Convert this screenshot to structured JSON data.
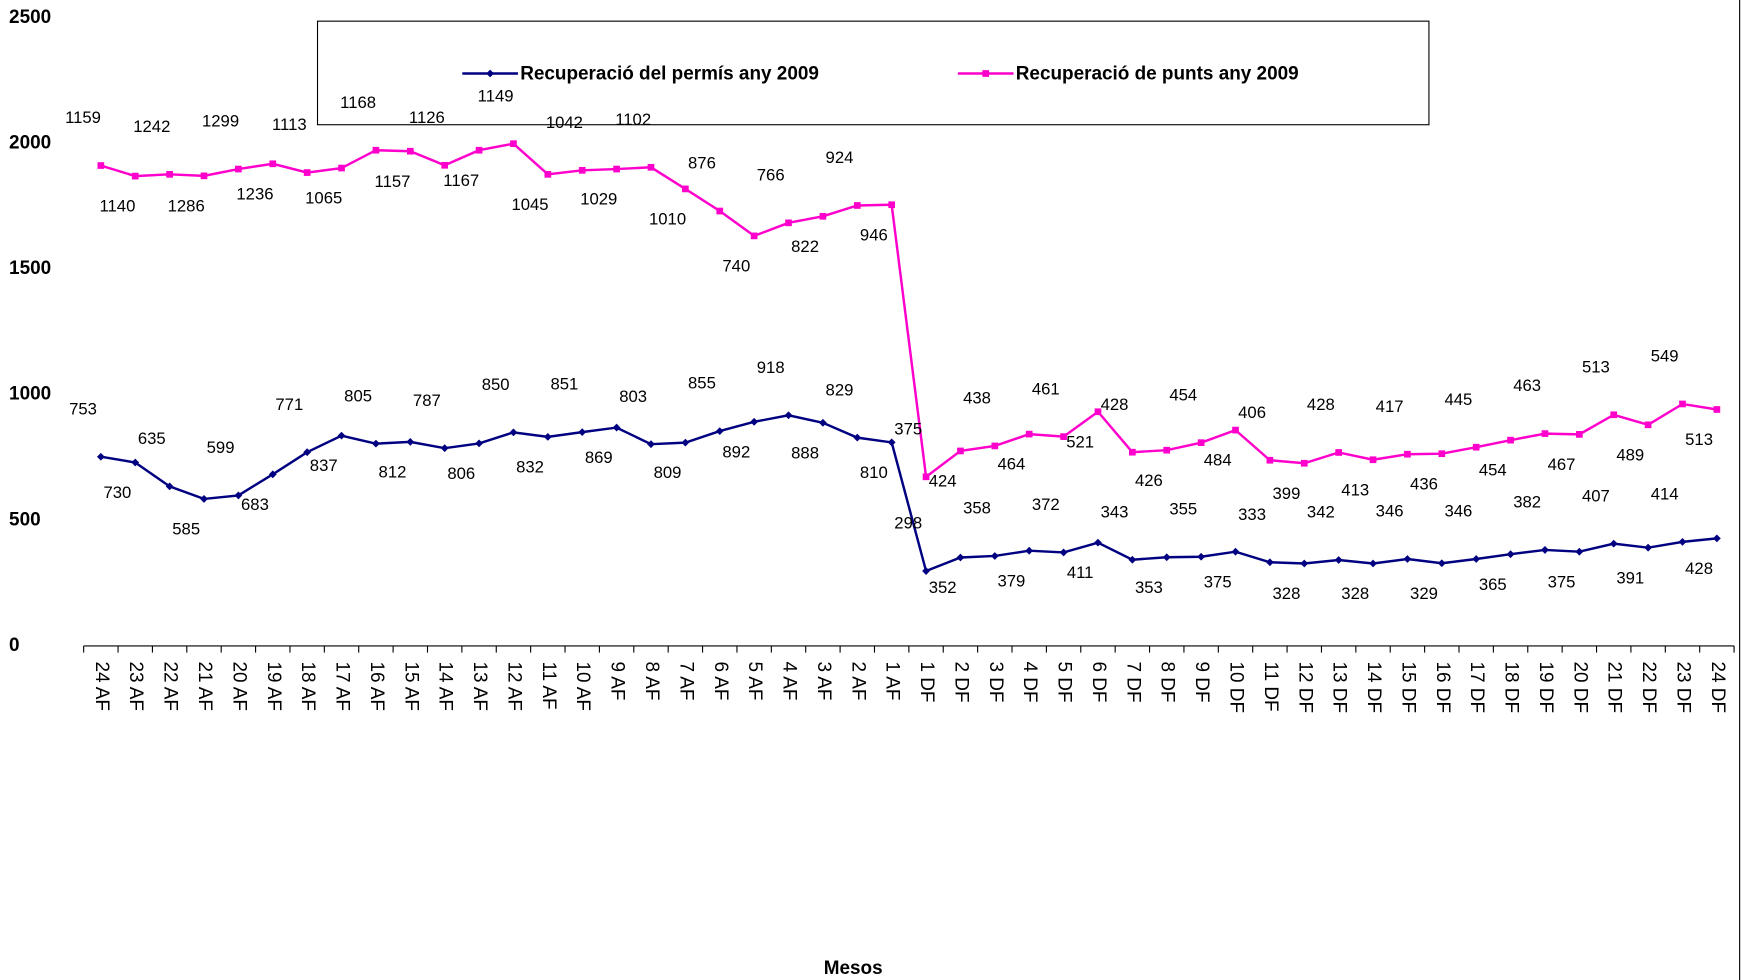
{
  "chart_data": {
    "type": "line",
    "stacked": true,
    "x_label": "Mesos",
    "categories": [
      "24 AF",
      "23 AF",
      "22 AF",
      "21 AF",
      "20 AF",
      "19 AF",
      "18 AF",
      "17 AF",
      "16 AF",
      "15 AF",
      "14 AF",
      "13 AF",
      "12 AF",
      "11 AF",
      "10 AF",
      "9 AF",
      "8 AF",
      "7 AF",
      "6 AF",
      "5 AF",
      "4 AF",
      "3 AF",
      "2 AF",
      "1 AF",
      "1 DF",
      "2 DF",
      "3 DF",
      "4 DF",
      "5 DF",
      "6 DF",
      "7 DF",
      "8 DF",
      "9 DF",
      "10 DF",
      "11 DF",
      "12 DF",
      "13 DF",
      "14 DF",
      "15 DF",
      "16 DF",
      "17 DF",
      "18 DF",
      "19 DF",
      "20 DF",
      "21 DF",
      "22 DF",
      "23 DF",
      "24 DF"
    ],
    "series": [
      {
        "name": "Recuperació del permís any 2009",
        "color": "#000080",
        "marker": "diamond",
        "values": [
          753,
          730,
          635,
          585,
          599,
          683,
          771,
          837,
          805,
          812,
          787,
          806,
          850,
          832,
          851,
          869,
          803,
          809,
          855,
          892,
          918,
          888,
          829,
          810,
          298,
          352,
          358,
          379,
          372,
          411,
          343,
          353,
          355,
          375,
          333,
          328,
          342,
          328,
          346,
          329,
          346,
          365,
          382,
          375,
          407,
          391,
          414,
          428
        ]
      },
      {
        "name": "Recuperació de punts any 2009",
        "color": "#ff00cc",
        "marker": "square",
        "values": [
          1159,
          1140,
          1242,
          1286,
          1299,
          1236,
          1113,
          1065,
          1168,
          1157,
          1126,
          1167,
          1149,
          1045,
          1042,
          1029,
          1102,
          1010,
          876,
          740,
          766,
          822,
          924,
          946,
          375,
          424,
          438,
          464,
          461,
          521,
          428,
          426,
          454,
          484,
          406,
          399,
          428,
          413,
          417,
          436,
          445,
          454,
          463,
          467,
          513,
          489,
          549,
          513
        ]
      }
    ],
    "ylim": [
      0,
      2500
    ],
    "yticks": [
      0,
      500,
      1000,
      1500,
      2000,
      2500
    ],
    "grid": false,
    "legend": "top"
  }
}
